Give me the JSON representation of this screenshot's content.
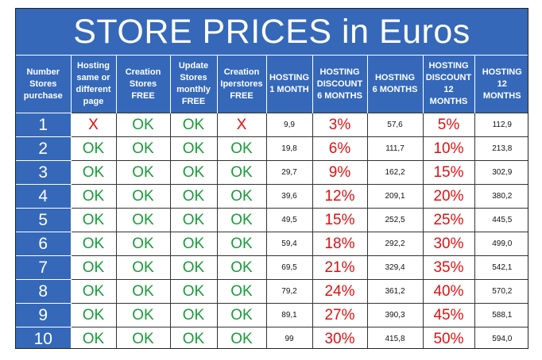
{
  "title": "STORE PRICES in Euros",
  "headers": [
    [
      "Number",
      "Stores",
      "purchase"
    ],
    [
      "Hosting",
      "same or",
      "different",
      "page"
    ],
    [
      "Creation",
      "Stores",
      "FREE"
    ],
    [
      "Update",
      "Stores",
      "monthly",
      "FREE"
    ],
    [
      "Creation",
      "Iperstores",
      "FREE"
    ],
    [
      "HOSTING",
      "1 MONTH"
    ],
    [
      "HOSTING",
      "DISCOUNT",
      "6 MONTHS"
    ],
    [
      "HOSTING",
      "6 MONTHS"
    ],
    [
      "HOSTING",
      "DISCOUNT",
      "12 MONTHS"
    ],
    [
      "HOSTING",
      "12",
      "MONTHS"
    ]
  ],
  "rows": [
    [
      "1",
      "X",
      "OK",
      "OK",
      "X",
      "9,9",
      "3%",
      "57,6",
      "5%",
      "112,9"
    ],
    [
      "2",
      "OK",
      "OK",
      "OK",
      "OK",
      "19,8",
      "6%",
      "111,7",
      "10%",
      "213,8"
    ],
    [
      "3",
      "OK",
      "OK",
      "OK",
      "OK",
      "29,7",
      "9%",
      "162,2",
      "15%",
      "302,9"
    ],
    [
      "4",
      "OK",
      "OK",
      "OK",
      "OK",
      "39,6",
      "12%",
      "209,1",
      "20%",
      "380,2"
    ],
    [
      "5",
      "OK",
      "OK",
      "OK",
      "OK",
      "49,5",
      "15%",
      "252,5",
      "25%",
      "445,5"
    ],
    [
      "6",
      "OK",
      "OK",
      "OK",
      "OK",
      "59,4",
      "18%",
      "292,2",
      "30%",
      "499,0"
    ],
    [
      "7",
      "OK",
      "OK",
      "OK",
      "OK",
      "69,5",
      "21%",
      "329,4",
      "35%",
      "542,1"
    ],
    [
      "8",
      "OK",
      "OK",
      "OK",
      "OK",
      "79,2",
      "24%",
      "361,2",
      "40%",
      "570,2"
    ],
    [
      "9",
      "OK",
      "OK",
      "OK",
      "OK",
      "89,1",
      "27%",
      "390,3",
      "45%",
      "588,1"
    ],
    [
      "10",
      "OK",
      "OK",
      "OK",
      "OK",
      "99",
      "30%",
      "415,8",
      "50%",
      "594,0"
    ]
  ],
  "colors": {
    "header_bg": "#3568b8",
    "ok_green": "#1a9b3b",
    "alert_red": "#e01010"
  }
}
